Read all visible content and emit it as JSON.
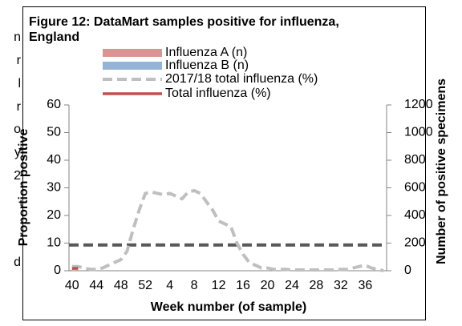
{
  "margin_text": [
    "n",
    "r",
    "l",
    "r",
    "o",
    "y",
    "2",
    ",",
    "d"
  ],
  "chart_data": {
    "type": "combo",
    "title": "Figure 12: DataMart samples positive for influenza,",
    "subtitle": "England",
    "x_label": "Week number (of sample)",
    "y_label": "Proportion positive",
    "y2_label": "Number of positive specimens",
    "categories": [
      "40",
      null,
      null,
      null,
      "44",
      null,
      null,
      null,
      "48",
      null,
      null,
      null,
      "52",
      null,
      null,
      null,
      "4",
      null,
      null,
      null,
      "8",
      null,
      null,
      null,
      "12",
      null,
      null,
      null,
      "16",
      null,
      null,
      null,
      "20",
      null,
      null,
      null,
      "24",
      null,
      null,
      null,
      "28",
      null,
      null,
      null,
      "32",
      null,
      null,
      null,
      "36",
      null,
      null,
      null
    ],
    "ylim": [
      0,
      60
    ],
    "yticks": [
      0,
      10,
      20,
      30,
      40,
      50,
      60
    ],
    "y2lim": [
      0,
      1200
    ],
    "y2ticks": [
      0,
      200,
      400,
      600,
      800,
      1000,
      1200
    ],
    "reference_line": {
      "value": 9.3,
      "color": "#595959"
    },
    "series": [
      {
        "name": "Influenza A (n)",
        "kind": "bar",
        "axis": "y2",
        "color": "#d99594",
        "values": [
          6,
          8,
          null,
          null,
          null,
          null,
          null,
          null,
          null,
          null,
          null,
          null,
          null,
          null,
          null,
          null,
          null,
          null,
          null,
          null,
          null,
          null,
          null,
          null,
          null,
          null,
          null,
          null,
          null,
          null,
          null,
          null,
          null,
          null,
          null,
          null,
          null,
          null,
          null,
          null,
          null,
          null,
          null,
          null,
          null,
          null,
          null,
          null,
          null,
          null,
          null,
          null
        ]
      },
      {
        "name": "Influenza B (n)",
        "kind": "bar",
        "axis": "y2",
        "color": "#95b3d7",
        "values": [
          0,
          0,
          null,
          null,
          null,
          null,
          null,
          null,
          null,
          null,
          null,
          null,
          null,
          null,
          null,
          null,
          null,
          null,
          null,
          null,
          null,
          null,
          null,
          null,
          null,
          null,
          null,
          null,
          null,
          null,
          null,
          null,
          null,
          null,
          null,
          null,
          null,
          null,
          null,
          null,
          null,
          null,
          null,
          null,
          null,
          null,
          null,
          null,
          null,
          null,
          null,
          null
        ]
      },
      {
        "name": "2017/18 total influenza (%)",
        "kind": "dash",
        "color": "#bfbfbf",
        "values": [
          1.5,
          1.5,
          1,
          0.5,
          0.5,
          1,
          2,
          3,
          4,
          7,
          15,
          22,
          28,
          28.5,
          28,
          27.5,
          28,
          27,
          26,
          28.5,
          29,
          28,
          25,
          22,
          18,
          17,
          16,
          10,
          6,
          3,
          2,
          1,
          1,
          0.5,
          0.5,
          0.5,
          0.3,
          0.3,
          0.3,
          0.3,
          0.3,
          0.3,
          0.3,
          0.3,
          0.5,
          0.5,
          1,
          1.5,
          2,
          1,
          0.5,
          0
        ]
      },
      {
        "name": "Total influenza (%)",
        "kind": "line",
        "color": "#c0504d",
        "values": [
          0.8,
          0.9,
          null,
          null,
          null,
          null,
          null,
          null,
          null,
          null,
          null,
          null,
          null,
          null,
          null,
          null,
          null,
          null,
          null,
          null,
          null,
          null,
          null,
          null,
          null,
          null,
          null,
          null,
          null,
          null,
          null,
          null,
          null,
          null,
          null,
          null,
          null,
          null,
          null,
          null,
          null,
          null,
          null,
          null,
          null,
          null,
          null,
          null,
          null,
          null,
          null,
          null
        ]
      }
    ]
  }
}
